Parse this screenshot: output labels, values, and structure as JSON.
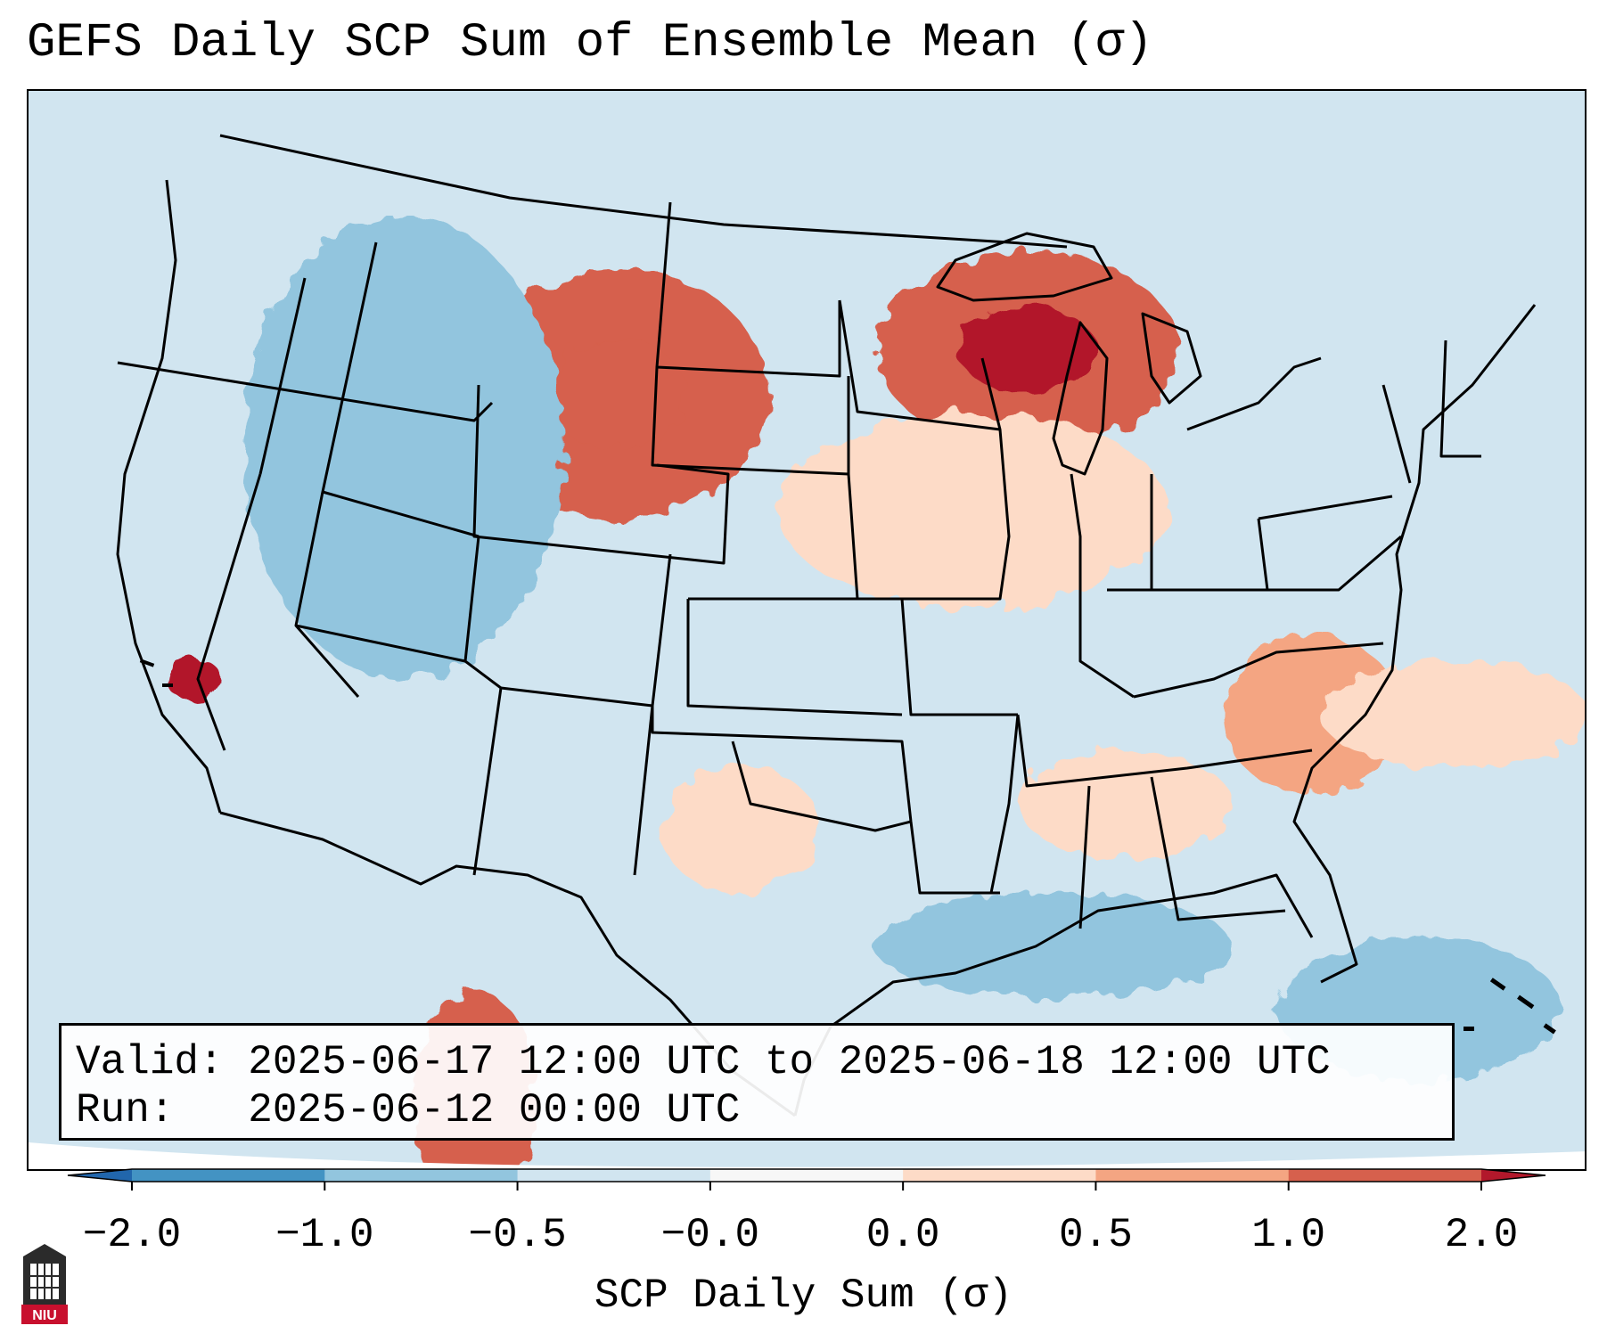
{
  "title": "GEFS Daily SCP Sum of Ensemble Mean (σ)",
  "info": {
    "valid_label": "Valid:",
    "valid_value": "2025-06-17 12:00 UTC to 2025-06-18 12:00 UTC",
    "run_label": "Run:",
    "run_value": "2025-06-12 00:00 UTC"
  },
  "colorbar": {
    "label": "SCP Daily Sum (σ)",
    "ticks": [
      "−2.0",
      "−1.0",
      "−0.5",
      "−0.0",
      "0.0",
      "0.5",
      "1.0",
      "2.0"
    ],
    "bins": [
      {
        "range": "< -2.0",
        "color": "#2166ac"
      },
      {
        "range": "-2.0 to -1.0",
        "color": "#4393c3"
      },
      {
        "range": "-1.0 to -0.5",
        "color": "#92c5de"
      },
      {
        "range": "-0.5 to -0.0",
        "color": "#d1e5f0"
      },
      {
        "range": "-0.0 to 0.0",
        "color": "#f7f7f7"
      },
      {
        "range": "0.0 to 0.5",
        "color": "#fddbc7"
      },
      {
        "range": "0.5 to 1.0",
        "color": "#f4a582"
      },
      {
        "range": "1.0 to 2.0",
        "color": "#d6604d"
      },
      {
        "range": "> 2.0",
        "color": "#b2182b"
      }
    ]
  },
  "map_regions": [
    {
      "region": "Northern Plains (Montana / Wyoming / Dakotas)",
      "value": 1.0
    },
    {
      "region": "Upper Midwest / Great Lakes",
      "value": 1.5
    },
    {
      "region": "Nebraska / Iowa / Wisconsin",
      "value": 0.3
    },
    {
      "region": "Carolinas / Virginia",
      "value": 0.6
    },
    {
      "region": "Southeast (Alabama / Georgia)",
      "value": 0.2
    },
    {
      "region": "West Texas",
      "value": 0.2
    },
    {
      "region": "Northern Mexico (Chihuahua / Durango)",
      "value": 1.2
    },
    {
      "region": "Southern California coast",
      "value": 2.0
    },
    {
      "region": "Northern Rockies / Idaho / Utah / Colorado",
      "value": -0.7
    },
    {
      "region": "Gulf of Mexico",
      "value": -0.7
    },
    {
      "region": "Western Atlantic / Bahamas",
      "value": -0.7
    },
    {
      "region": "Western Atlantic offshore",
      "value": 0.3
    }
  ],
  "logo_text": "NIU",
  "colors": {
    "ocean_background": "#d1e5f0",
    "outline": "#000000"
  }
}
